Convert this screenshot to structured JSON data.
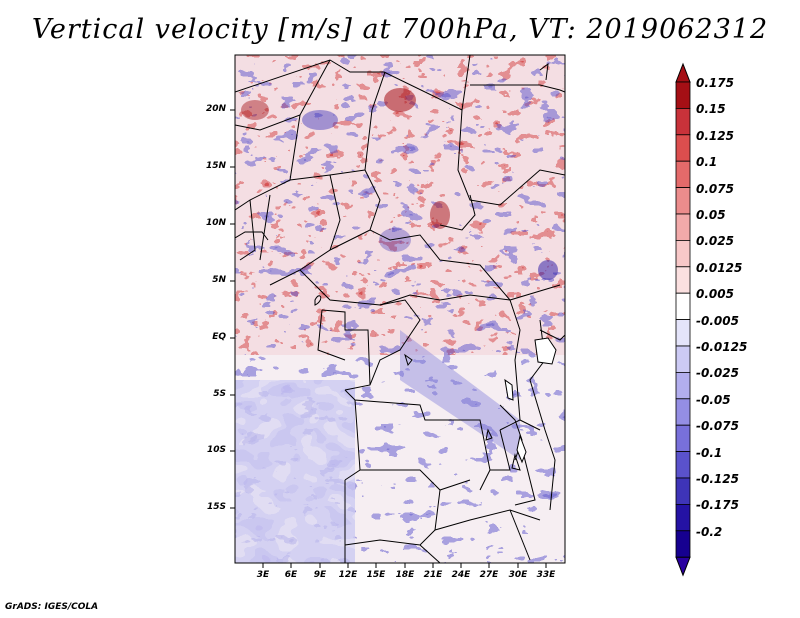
{
  "title": "Vertical velocity [m/s] at 700hPa, VT: 2019062312",
  "credit": "GrADS: IGES/COLA",
  "lat_labels": [
    "20N",
    "15N",
    "10N",
    "5N",
    "EQ",
    "5S",
    "10S",
    "15S"
  ],
  "lon_labels": [
    "3E",
    "6E",
    "9E",
    "12E",
    "15E",
    "18E",
    "21E",
    "24E",
    "27E",
    "30E",
    "33E"
  ],
  "colorbar": {
    "labels": [
      "0.175",
      "0.15",
      "0.125",
      "0.1",
      "0.075",
      "0.05",
      "0.025",
      "0.0125",
      "0.005",
      "-0.005",
      "-0.0125",
      "-0.025",
      "-0.05",
      "-0.075",
      "-0.1",
      "-0.125",
      "-0.175",
      "-0.2"
    ],
    "colors": [
      "#a50f15",
      "#c8323a",
      "#dc4e4e",
      "#e46a6a",
      "#ec8c8c",
      "#f2aaaa",
      "#f8c8c8",
      "#fbe0e0",
      "#ffffff",
      "#e4e4fa",
      "#cccaf4",
      "#b2aeee",
      "#948ee4",
      "#7870da",
      "#5a52cc",
      "#3e34b8",
      "#2412a4",
      "#160090"
    ],
    "top_color": "#a50f15",
    "bottom_color": "#2a00a0"
  },
  "colors": {
    "positive": "#d23c3c",
    "negative": "#5048c8"
  }
}
